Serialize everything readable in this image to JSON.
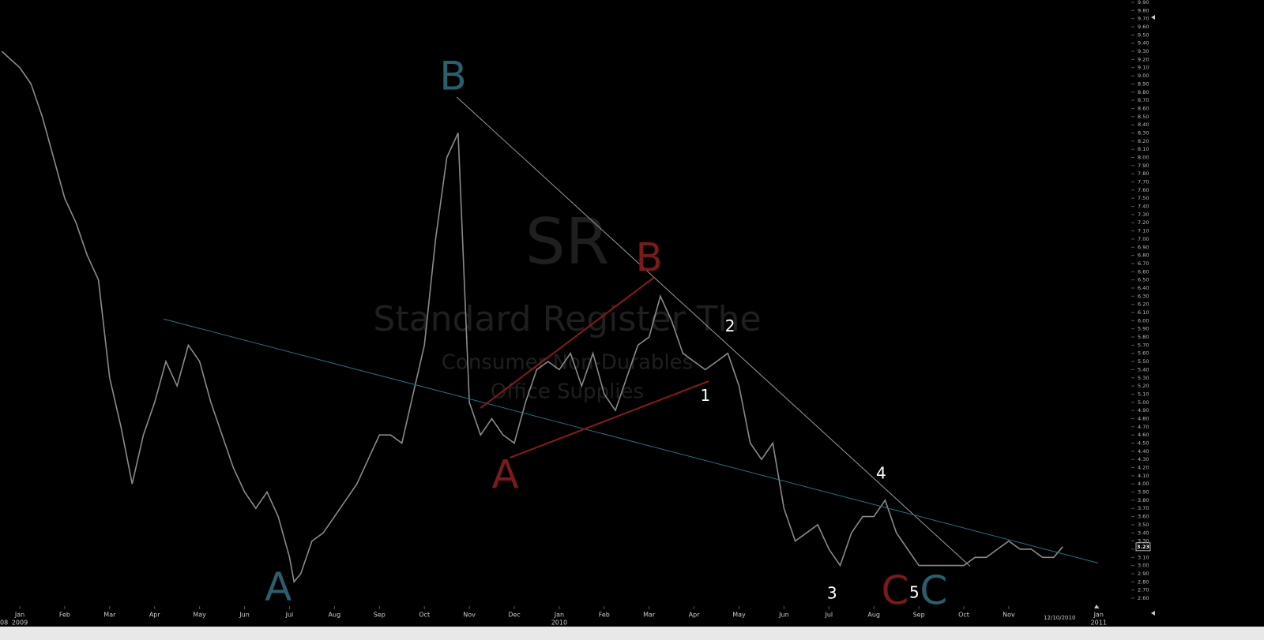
{
  "chart_data": {
    "type": "price",
    "watermark": [
      "SR",
      "Standard Register The",
      "Consumer Non-Durables",
      "Office Supplies"
    ],
    "xlim": [
      -0.44,
      24.69
    ],
    "ylim": [
      2.6,
      9.9
    ],
    "xticks": [
      {
        "value": 0,
        "label": "Jan"
      },
      {
        "value": 1,
        "label": "Feb"
      },
      {
        "value": 2,
        "label": "Mar"
      },
      {
        "value": 3,
        "label": "Apr"
      },
      {
        "value": 4,
        "label": "May"
      },
      {
        "value": 5,
        "label": "Jun"
      },
      {
        "value": 6,
        "label": "Jul"
      },
      {
        "value": 7,
        "label": "Aug"
      },
      {
        "value": 8,
        "label": "Sep"
      },
      {
        "value": 9,
        "label": "Oct"
      },
      {
        "value": 10,
        "label": "Nov"
      },
      {
        "value": 11,
        "label": "Dec"
      },
      {
        "value": 12,
        "label": "Jan"
      },
      {
        "value": 13,
        "label": "Feb"
      },
      {
        "value": 14,
        "label": "Mar"
      },
      {
        "value": 15,
        "label": "Apr"
      },
      {
        "value": 16,
        "label": "May"
      },
      {
        "value": 17,
        "label": "Jun"
      },
      {
        "value": 18,
        "label": "Jul"
      },
      {
        "value": 19,
        "label": "Aug"
      },
      {
        "value": 20,
        "label": "Sep"
      },
      {
        "value": 21,
        "label": "Oct"
      },
      {
        "value": 22,
        "label": "Nov"
      },
      {
        "value": 24,
        "label": "Jan"
      }
    ],
    "year_labels": [
      {
        "value": -0.44,
        "label": "08"
      },
      {
        "value": 0,
        "label": "2009"
      },
      {
        "value": 12,
        "label": "2010"
      },
      {
        "value": 24,
        "label": "2011"
      }
    ],
    "cursor_date": {
      "value": 23.13,
      "label": "12/10/2010"
    },
    "last_price": {
      "value": 3.23,
      "label": "3.23"
    },
    "yticks": [
      {
        "value": 2.6,
        "label": "2.60"
      },
      {
        "value": 2.7,
        "label": "2.70"
      },
      {
        "value": 2.8,
        "label": "2.80"
      },
      {
        "value": 2.9,
        "label": "2.90"
      },
      {
        "value": 3.0,
        "label": "3.00"
      },
      {
        "value": 3.1,
        "label": "3.10"
      },
      {
        "value": 3.2,
        "label": "3.20"
      },
      {
        "value": 3.3,
        "label": "3.30"
      },
      {
        "value": 3.4,
        "label": "3.40"
      },
      {
        "value": 3.5,
        "label": "3.50"
      },
      {
        "value": 3.6,
        "label": "3.60"
      },
      {
        "value": 3.7,
        "label": "3.70"
      },
      {
        "value": 3.8,
        "label": "3.80"
      },
      {
        "value": 3.9,
        "label": "3.90"
      },
      {
        "value": 4.0,
        "label": "4.00"
      },
      {
        "value": 4.1,
        "label": "4.10"
      },
      {
        "value": 4.2,
        "label": "4.20"
      },
      {
        "value": 4.3,
        "label": "4.30"
      },
      {
        "value": 4.4,
        "label": "4.40"
      },
      {
        "value": 4.5,
        "label": "4.50"
      },
      {
        "value": 4.6,
        "label": "4.60"
      },
      {
        "value": 4.7,
        "label": "4.70"
      },
      {
        "value": 4.8,
        "label": "4.80"
      },
      {
        "value": 4.9,
        "label": "4.90"
      },
      {
        "value": 5.0,
        "label": "5.00"
      },
      {
        "value": 5.1,
        "label": "5.10"
      },
      {
        "value": 5.2,
        "label": "5.20"
      },
      {
        "value": 5.3,
        "label": "5.30"
      },
      {
        "value": 5.4,
        "label": "5.40"
      },
      {
        "value": 5.5,
        "label": "5.50"
      },
      {
        "value": 5.6,
        "label": "5.60"
      },
      {
        "value": 5.7,
        "label": "5.70"
      },
      {
        "value": 5.8,
        "label": "5.80"
      },
      {
        "value": 5.9,
        "label": "5.90"
      },
      {
        "value": 6.0,
        "label": "6.00"
      },
      {
        "value": 6.1,
        "label": "6.10"
      },
      {
        "value": 6.2,
        "label": "6.20"
      },
      {
        "value": 6.3,
        "label": "6.30"
      },
      {
        "value": 6.4,
        "label": "6.40"
      },
      {
        "value": 6.5,
        "label": "6.50"
      },
      {
        "value": 6.6,
        "label": "6.60"
      },
      {
        "value": 6.7,
        "label": "6.70"
      },
      {
        "value": 6.8,
        "label": "6.80"
      },
      {
        "value": 6.9,
        "label": "6.90"
      },
      {
        "value": 7.0,
        "label": "7.00"
      },
      {
        "value": 7.1,
        "label": "7.10"
      },
      {
        "value": 7.2,
        "label": "7.20"
      },
      {
        "value": 7.3,
        "label": "7.30"
      },
      {
        "value": 7.4,
        "label": "7.40"
      },
      {
        "value": 7.5,
        "label": "7.50"
      },
      {
        "value": 7.6,
        "label": "7.60"
      },
      {
        "value": 7.7,
        "label": "7.70"
      },
      {
        "value": 7.8,
        "label": "7.80"
      },
      {
        "value": 7.9,
        "label": "7.90"
      },
      {
        "value": 8.0,
        "label": "8.00"
      },
      {
        "value": 8.1,
        "label": "8.10"
      },
      {
        "value": 8.2,
        "label": "8.20"
      },
      {
        "value": 8.3,
        "label": "8.30"
      },
      {
        "value": 8.4,
        "label": "8.40"
      },
      {
        "value": 8.5,
        "label": "8.50"
      },
      {
        "value": 8.6,
        "label": "8.60"
      },
      {
        "value": 8.7,
        "label": "8.70"
      },
      {
        "value": 8.8,
        "label": "8.80"
      },
      {
        "value": 8.9,
        "label": "8.90"
      },
      {
        "value": 9.0,
        "label": "9.00"
      },
      {
        "value": 9.1,
        "label": "9.10"
      },
      {
        "value": 9.2,
        "label": "9.20"
      },
      {
        "value": 9.3,
        "label": "9.30"
      },
      {
        "value": 9.4,
        "label": "9.40"
      },
      {
        "value": 9.5,
        "label": "9.50"
      },
      {
        "value": 9.6,
        "label": "9.60"
      },
      {
        "value": 9.7,
        "label": "9.70"
      },
      {
        "value": 9.8,
        "label": "9.80"
      },
      {
        "value": 9.9,
        "label": "9.90"
      }
    ],
    "series": [
      {
        "color": "#8a8a8a",
        "x": [
          -0.4,
          0,
          0.25,
          0.5,
          0.75,
          1,
          1.25,
          1.5,
          1.75,
          2,
          2.25,
          2.5,
          2.75,
          3,
          3.25,
          3.5,
          3.75,
          4,
          4.25,
          4.5,
          4.75,
          5,
          5.25,
          5.5,
          5.75,
          6,
          6.1,
          6.25,
          6.5,
          6.75,
          7,
          7.25,
          7.5,
          7.75,
          8,
          8.25,
          8.5,
          8.75,
          9,
          9.25,
          9.5,
          9.75,
          10,
          10.25,
          10.5,
          10.75,
          11,
          11.25,
          11.5,
          11.75,
          12,
          12.25,
          12.5,
          12.75,
          13,
          13.25,
          13.5,
          13.75,
          14,
          14.25,
          14.5,
          14.75,
          15,
          15.25,
          15.5,
          15.75,
          16,
          16.25,
          16.5,
          16.75,
          17,
          17.25,
          17.5,
          17.75,
          18,
          18.25,
          18.5,
          18.75,
          19,
          19.25,
          19.5,
          19.75,
          20,
          20.25,
          20.5,
          20.75,
          21,
          21.25,
          21.5,
          21.75,
          22,
          22.25,
          22.5,
          22.75,
          23,
          23.2
        ],
        "values": [
          9.3,
          9.1,
          8.9,
          8.5,
          8.0,
          7.5,
          7.2,
          6.8,
          6.5,
          5.3,
          4.7,
          4.0,
          4.6,
          5.0,
          5.5,
          5.2,
          5.7,
          5.5,
          5.0,
          4.6,
          4.2,
          3.9,
          3.7,
          3.9,
          3.6,
          3.1,
          2.8,
          2.9,
          3.3,
          3.4,
          3.6,
          3.8,
          4.0,
          4.3,
          4.6,
          4.6,
          4.5,
          5.1,
          5.7,
          7.0,
          8.0,
          8.3,
          5.0,
          4.6,
          4.8,
          4.6,
          4.5,
          5.0,
          5.4,
          5.5,
          5.4,
          5.6,
          5.2,
          5.6,
          5.1,
          4.9,
          5.3,
          5.7,
          5.8,
          6.3,
          6.0,
          5.6,
          5.5,
          5.4,
          5.5,
          5.6,
          5.2,
          4.5,
          4.3,
          4.5,
          3.7,
          3.3,
          3.4,
          3.5,
          3.2,
          3.0,
          3.4,
          3.6,
          3.6,
          3.8,
          3.4,
          3.2,
          3.0,
          3.0,
          3.0,
          3.0,
          3.0,
          3.1,
          3.1,
          3.2,
          3.3,
          3.2,
          3.2,
          3.1,
          3.1,
          3.23
        ]
      }
    ],
    "trendlines": [
      {
        "color": "#9a9a9a",
        "x": [
          9.72,
          21.14
        ],
        "y": [
          8.74,
          2.99
        ]
      },
      {
        "color": "#2a6f86",
        "x": [
          3.2,
          23.99
        ],
        "y": [
          6.02,
          3.03
        ]
      },
      {
        "color": "#8b1a1a",
        "x": [
          10.25,
          14.11
        ],
        "y": [
          4.93,
          6.53
        ]
      },
      {
        "color": "#8b1a1a",
        "x": [
          10.9,
          15.33
        ],
        "y": [
          4.32,
          5.26
        ]
      }
    ],
    "annotations": [
      {
        "text": "B",
        "x": 9.64,
        "y": 8.96,
        "color": "#2a5f6e"
      },
      {
        "text": "A",
        "x": 5.75,
        "y": 2.7,
        "color": "#2a5f6e"
      },
      {
        "text": "C",
        "x": 20.33,
        "y": 2.66,
        "color": "#2a5f6e"
      },
      {
        "text": "A",
        "x": 10.8,
        "y": 4.08,
        "color": "#7a1a1a"
      },
      {
        "text": "B",
        "x": 14.0,
        "y": 6.74,
        "color": "#7a1a1a"
      },
      {
        "text": "C",
        "x": 19.47,
        "y": 2.66,
        "color": "#7a1a1a"
      },
      {
        "text": "1",
        "x": 15.25,
        "y": 5.07,
        "color": "#ffffff"
      },
      {
        "text": "2",
        "x": 15.8,
        "y": 5.92,
        "color": "#ffffff"
      },
      {
        "text": "3",
        "x": 18.07,
        "y": 2.65,
        "color": "#ffffff"
      },
      {
        "text": "4",
        "x": 19.16,
        "y": 4.12,
        "color": "#ffffff"
      },
      {
        "text": "5",
        "x": 19.9,
        "y": 2.66,
        "color": "#ffffff"
      }
    ]
  }
}
